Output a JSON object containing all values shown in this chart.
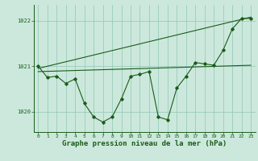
{
  "background_color": "#cce8dc",
  "plot_bg_color": "#cce8dc",
  "grid_color": "#99ccbb",
  "line_color": "#1a5c1a",
  "xlabel": "Graphe pression niveau de la mer (hPa)",
  "xlabel_fontsize": 6.5,
  "ylabel_ticks": [
    1020,
    1021,
    1022
  ],
  "ytick_labels": [
    "1020",
    "1021",
    "1022"
  ],
  "xlim": [
    -0.5,
    23.5
  ],
  "ylim": [
    1019.55,
    1022.35
  ],
  "xticks": [
    0,
    1,
    2,
    3,
    4,
    5,
    6,
    7,
    8,
    9,
    10,
    11,
    12,
    13,
    14,
    15,
    16,
    17,
    18,
    19,
    20,
    21,
    22,
    23
  ],
  "series_jagged": {
    "x": [
      0,
      1,
      2,
      3,
      4,
      5,
      6,
      7,
      8,
      9,
      10,
      11,
      12,
      13,
      14,
      15,
      16,
      17,
      18,
      19,
      20,
      21,
      22,
      23
    ],
    "y": [
      1021.0,
      1020.75,
      1020.78,
      1020.62,
      1020.72,
      1020.18,
      1019.88,
      1019.77,
      1019.88,
      1020.28,
      1020.78,
      1020.82,
      1020.88,
      1019.88,
      1019.82,
      1020.52,
      1020.78,
      1021.08,
      1021.05,
      1021.02,
      1021.35,
      1021.82,
      1022.05,
      1022.05
    ]
  },
  "series_line1": {
    "x": [
      0,
      23
    ],
    "y": [
      1020.88,
      1021.02
    ]
  },
  "series_line2": {
    "x": [
      0,
      23
    ],
    "y": [
      1020.95,
      1022.08
    ]
  }
}
